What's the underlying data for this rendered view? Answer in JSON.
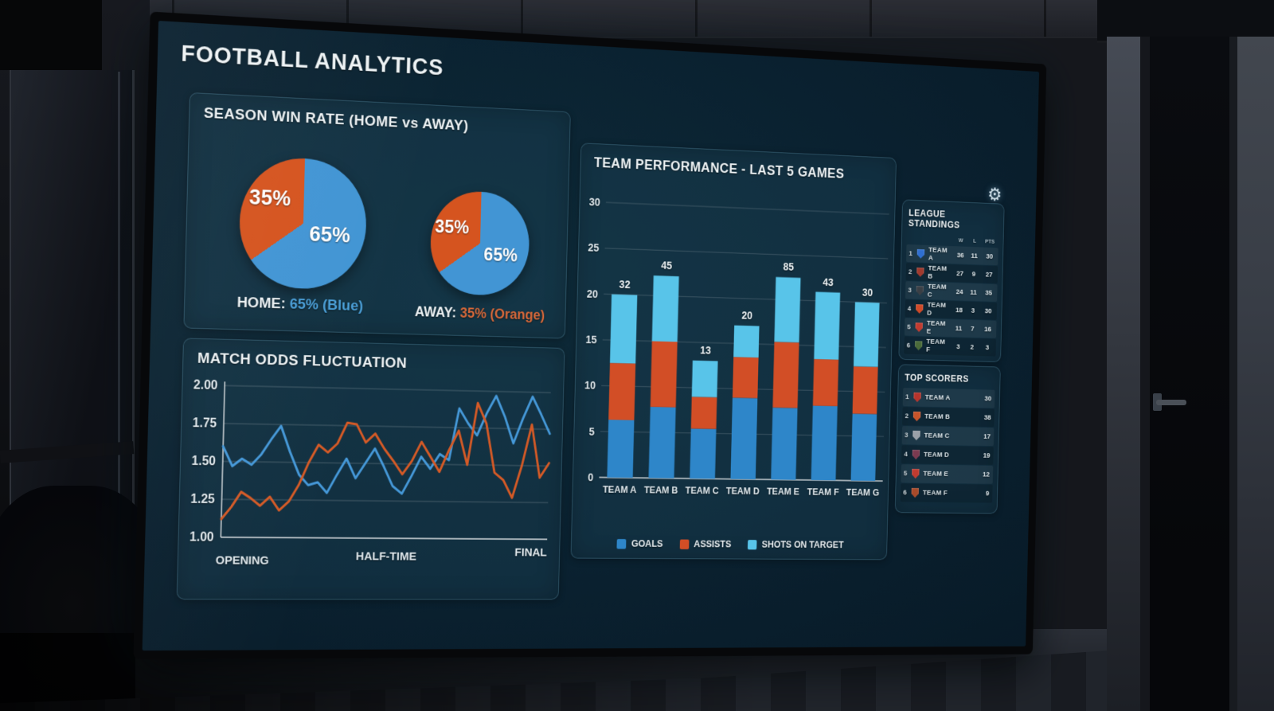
{
  "screen": {
    "title": "FOOTBALL ANALYTICS",
    "accent_blue": "#4a9fd8",
    "accent_light_blue": "#58c4e9",
    "accent_orange": "#d85c28"
  },
  "win_rate": {
    "title": "SEASON WIN RATE (HOME vs AWAY)",
    "home_label": "HOME:",
    "home_value": "65% (Blue)",
    "away_label": "AWAY:",
    "away_value": "35% (Orange)"
  },
  "odds_panel": {
    "title": "MATCH ODDS FLUCTUATION"
  },
  "performance_panel": {
    "title": "TEAM PERFORMANCE - LAST 5 GAMES"
  },
  "icons": {
    "settings": "⚙"
  },
  "chart_data": [
    {
      "id": "win-rate-home-pie",
      "type": "pie",
      "title": "SEASON WIN RATE (HOME vs AWAY) - left pie",
      "slices": [
        {
          "label": "65%",
          "value": 65,
          "color": "#4295d4"
        },
        {
          "label": "35%",
          "value": 35,
          "color": "#d5541f"
        }
      ]
    },
    {
      "id": "win-rate-away-pie",
      "type": "pie",
      "title": "SEASON WIN RATE (HOME vs AWAY) - right pie",
      "slices": [
        {
          "label": "65%",
          "value": 65,
          "color": "#4295d4"
        },
        {
          "label": "35%",
          "value": 35,
          "color": "#d5541f"
        }
      ]
    },
    {
      "id": "match-odds",
      "type": "line",
      "title": "MATCH ODDS FLUCTUATION",
      "x_labels": [
        "OPENING",
        "HALF-TIME",
        "FINAL"
      ],
      "y_ticks": [
        "2.00",
        "1.75",
        "1.50",
        "1.25",
        "1.00"
      ],
      "ylim": [
        1.0,
        2.0
      ],
      "grid": true,
      "legend_position": "none",
      "series": [
        {
          "name": "blue-odds",
          "color": "#4598d8",
          "values": [
            1.6,
            1.47,
            1.52,
            1.48,
            1.55,
            1.65,
            1.74,
            1.57,
            1.42,
            1.35,
            1.37,
            1.3,
            1.42,
            1.53,
            1.4,
            1.5,
            1.6,
            1.48,
            1.35,
            1.3,
            1.42,
            1.55,
            1.47,
            1.57,
            1.53,
            1.88,
            1.78,
            1.7,
            1.85,
            1.97,
            1.83,
            1.65,
            1.82,
            1.97,
            1.85,
            1.72
          ]
        },
        {
          "name": "orange-odds",
          "color": "#d55a26",
          "values": [
            1.12,
            1.2,
            1.3,
            1.26,
            1.21,
            1.27,
            1.18,
            1.24,
            1.35,
            1.5,
            1.62,
            1.57,
            1.63,
            1.77,
            1.76,
            1.64,
            1.7,
            1.6,
            1.52,
            1.43,
            1.52,
            1.65,
            1.55,
            1.45,
            1.6,
            1.73,
            1.5,
            1.92,
            1.78,
            1.45,
            1.4,
            1.28,
            1.5,
            1.78,
            1.42,
            1.52
          ]
        }
      ]
    },
    {
      "id": "team-performance",
      "type": "bar",
      "title": "TEAM PERFORMANCE - LAST 5 GAMES",
      "categories": [
        "TEAM A",
        "TEAM B",
        "TEAM C",
        "TEAM D",
        "TEAM E",
        "TEAM F",
        "TEAM G"
      ],
      "bar_labels": [
        "32",
        "45",
        "13",
        "20",
        "85",
        "43",
        "30"
      ],
      "y_ticks": [
        30,
        25,
        20,
        15,
        10,
        5,
        0
      ],
      "ylim": [
        0,
        30
      ],
      "grid": true,
      "stacked": true,
      "legend_position": "bottom",
      "series": [
        {
          "name": "GOALS",
          "color": "#2e86c9",
          "values": [
            6.3,
            7.8,
            5.5,
            9.0,
            8.0,
            8.3,
            7.5
          ]
        },
        {
          "name": "ASSISTS",
          "color": "#d24e26",
          "values": [
            6.2,
            7.2,
            3.5,
            4.5,
            7.3,
            5.2,
            5.3
          ]
        },
        {
          "name": "SHOTS ON TARGET",
          "color": "#58c4e9",
          "values": [
            7.5,
            7.2,
            4.0,
            3.5,
            7.2,
            7.5,
            7.2
          ]
        }
      ]
    }
  ],
  "standings": {
    "title": "LEAGUE STANDINGS",
    "columns": [
      "W",
      "L",
      "PTS"
    ],
    "rows": [
      {
        "pos": "1",
        "team": "TEAM A",
        "w": "36",
        "l": "11",
        "pts": "30",
        "badge": "#2f6fd0"
      },
      {
        "pos": "2",
        "team": "TEAM B",
        "w": "27",
        "l": "9",
        "pts": "27",
        "badge": "#a03a2e"
      },
      {
        "pos": "3",
        "team": "TEAM C",
        "w": "24",
        "l": "11",
        "pts": "35",
        "badge": "#3a3f45"
      },
      {
        "pos": "4",
        "team": "TEAM D",
        "w": "18",
        "l": "3",
        "pts": "30",
        "badge": "#d04a28"
      },
      {
        "pos": "5",
        "team": "TEAM E",
        "w": "11",
        "l": "7",
        "pts": "16",
        "badge": "#c23b30"
      },
      {
        "pos": "6",
        "team": "TEAM F",
        "w": "3",
        "l": "2",
        "pts": "3",
        "badge": "#4a6b3a"
      }
    ]
  },
  "top_scorers": {
    "title": "TOP SCORERS",
    "rows": [
      {
        "pos": "1",
        "team": "TEAM A",
        "value": "30",
        "badge": "#b5342c"
      },
      {
        "pos": "2",
        "team": "TEAM B",
        "value": "38",
        "badge": "#c8542a"
      },
      {
        "pos": "3",
        "team": "TEAM C",
        "value": "17",
        "badge": "#9aa0a8"
      },
      {
        "pos": "4",
        "team": "TEAM D",
        "value": "19",
        "badge": "#7a3a50"
      },
      {
        "pos": "5",
        "team": "TEAM E",
        "value": "12",
        "badge": "#c23b30"
      },
      {
        "pos": "6",
        "team": "TEAM F",
        "value": "9",
        "badge": "#a84a2a"
      }
    ]
  }
}
